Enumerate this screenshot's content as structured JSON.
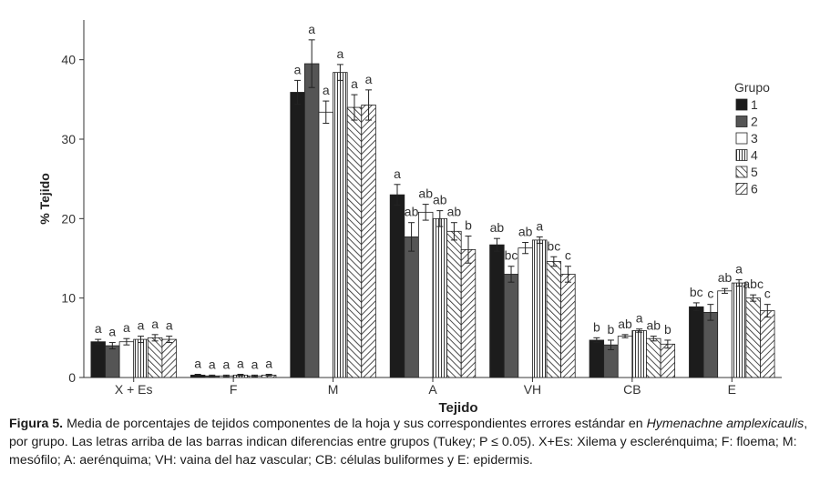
{
  "chart_data": {
    "type": "bar",
    "xlabel": "Tejido",
    "ylabel": "% Tejido",
    "ylim": [
      0,
      45
    ],
    "yticks": [
      0,
      10,
      20,
      30,
      40
    ],
    "legend_title": "Grupo",
    "legend_position": "right",
    "grid": false,
    "categories": [
      "X + Es",
      "F",
      "M",
      "A",
      "VH",
      "CB",
      "E"
    ],
    "series": [
      {
        "name": "1",
        "fill": "solid-black",
        "values": [
          4.5,
          0.3,
          35.9,
          23.0,
          16.7,
          4.7,
          8.9
        ],
        "errors": [
          0.3,
          0.1,
          1.5,
          1.3,
          0.8,
          0.3,
          0.5
        ],
        "letters": [
          "a",
          "a",
          "a",
          "a",
          "ab",
          "b",
          "bc"
        ]
      },
      {
        "name": "2",
        "fill": "solid-gray",
        "values": [
          4.0,
          0.2,
          39.5,
          17.7,
          13.0,
          4.1,
          8.2
        ],
        "errors": [
          0.4,
          0.1,
          3.0,
          1.8,
          1.0,
          0.6,
          1.0
        ],
        "letters": [
          "a",
          "a",
          "a",
          "ab",
          "bc",
          "b",
          "c"
        ]
      },
      {
        "name": "3",
        "fill": "white",
        "values": [
          4.5,
          0.2,
          33.4,
          20.8,
          16.3,
          5.2,
          10.9
        ],
        "errors": [
          0.4,
          0.1,
          1.4,
          1.0,
          0.7,
          0.2,
          0.3
        ],
        "letters": [
          "a",
          "a",
          "a",
          "ab",
          "ab",
          "ab",
          "ab"
        ]
      },
      {
        "name": "4",
        "fill": "vertical-lines",
        "values": [
          4.8,
          0.3,
          38.4,
          20.0,
          17.3,
          5.9,
          11.9
        ],
        "errors": [
          0.4,
          0.1,
          1.0,
          1.0,
          0.4,
          0.2,
          0.4
        ],
        "letters": [
          "a",
          "a",
          "a",
          "ab",
          "a",
          "a",
          "a"
        ]
      },
      {
        "name": "5",
        "fill": "diagonal-right",
        "values": [
          5.0,
          0.2,
          34.0,
          18.4,
          14.6,
          4.9,
          10.0
        ],
        "errors": [
          0.4,
          0.1,
          1.6,
          1.1,
          0.6,
          0.3,
          0.4
        ],
        "letters": [
          "a",
          "a",
          "a",
          "ab",
          "bc",
          "ab",
          "abc"
        ]
      },
      {
        "name": "6",
        "fill": "diagonal-left",
        "values": [
          4.8,
          0.3,
          34.3,
          16.1,
          13.0,
          4.2,
          8.4
        ],
        "errors": [
          0.4,
          0.1,
          1.9,
          1.7,
          1.0,
          0.5,
          0.8
        ],
        "letters": [
          "a",
          "a",
          "a",
          "b",
          "c",
          "b",
          "c"
        ]
      }
    ]
  },
  "caption": {
    "fig_label": "Figura 5.",
    "text_1": "Media de porcentajes de tejidos componentes de la hoja y sus correspondientes errores estándar en",
    "species": "Hymenachne amplexicaulis",
    "text_2": ", por grupo. Las letras arriba de las barras indican diferencias entre grupos (Tukey; P ≤ 0.05). X+Es: Xilema y esclerénquima; F: floema; M: mesófilo; A: aerénquima; VH: vaina del haz vascular; CB: células buliformes y E: epidermis."
  }
}
